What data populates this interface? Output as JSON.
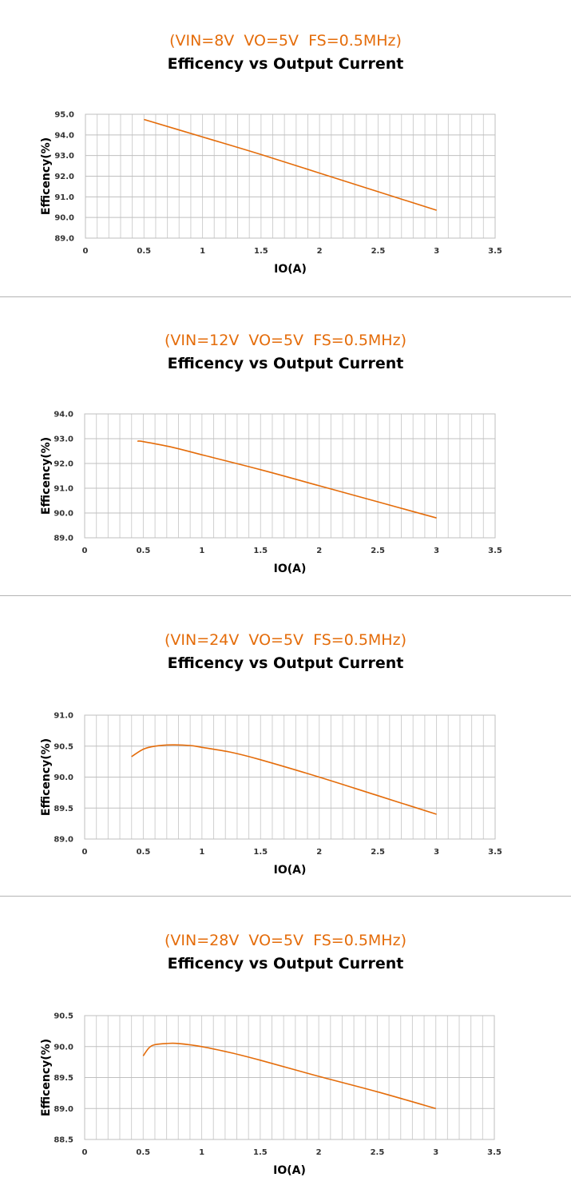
{
  "chart_data": [
    {
      "type": "line",
      "subtitle": "(VIN=8V  VO=5V  FS=0.5MHz)",
      "title": "Efficency vs Output Current",
      "xlabel": "IO(A)",
      "ylabel": "Efficency(%)",
      "xlim": [
        0,
        3.5
      ],
      "ylim": [
        89.0,
        95.0
      ],
      "xticks": [
        "0",
        "0.5",
        "1",
        "1.5",
        "2",
        "2.5",
        "3",
        "3.5"
      ],
      "yticks": [
        "89.0",
        "90.0",
        "91.0",
        "92.0",
        "93.0",
        "94.0",
        "95.0"
      ],
      "grid": true,
      "line_color": "#e46c0a",
      "series": [
        {
          "x": [
            0.5,
            1.0,
            1.5,
            2.0,
            2.5,
            3.0
          ],
          "y": [
            94.75,
            93.9,
            93.05,
            92.15,
            91.25,
            90.35
          ]
        }
      ]
    },
    {
      "type": "line",
      "subtitle": "(VIN=12V  VO=5V  FS=0.5MHz)",
      "title": "Efficency vs Output Current",
      "xlabel": "IO(A)",
      "ylabel": "Efficency(%)",
      "xlim": [
        0,
        3.5
      ],
      "ylim": [
        89.0,
        94.0
      ],
      "xticks": [
        "0",
        "0.5",
        "1",
        "1.5",
        "2",
        "2.5",
        "3",
        "3.5"
      ],
      "yticks": [
        "89.0",
        "90.0",
        "91.0",
        "92.0",
        "93.0",
        "94.0"
      ],
      "grid": true,
      "line_color": "#e46c0a",
      "series": [
        {
          "x": [
            0.45,
            0.5,
            0.75,
            1.0,
            1.5,
            2.0,
            2.5,
            3.0
          ],
          "y": [
            92.9,
            92.88,
            92.65,
            92.35,
            91.75,
            91.1,
            90.45,
            89.8
          ]
        }
      ]
    },
    {
      "type": "line",
      "subtitle": "(VIN=24V  VO=5V  FS=0.5MHz)",
      "title": "Efficency vs Output Current",
      "xlabel": "IO(A)",
      "ylabel": "Efficency(%)",
      "xlim": [
        0,
        3.5
      ],
      "ylim": [
        89.0,
        91.0
      ],
      "xticks": [
        "0",
        "0.5",
        "1",
        "1.5",
        "2",
        "2.5",
        "3",
        "3.5"
      ],
      "yticks": [
        "89.0",
        "89.5",
        "90.0",
        "90.5",
        "91.0"
      ],
      "grid": true,
      "line_color": "#e46c0a",
      "series": [
        {
          "x": [
            0.4,
            0.5,
            0.6,
            0.75,
            0.9,
            1.0,
            1.25,
            1.5,
            2.0,
            2.5,
            3.0
          ],
          "y": [
            90.33,
            90.45,
            90.5,
            90.52,
            90.51,
            90.48,
            90.4,
            90.28,
            90.0,
            89.7,
            89.4
          ]
        }
      ]
    },
    {
      "type": "line",
      "subtitle": "(VIN=28V  VO=5V  FS=0.5MHz)",
      "title": "Efficency vs Output Current",
      "xlabel": "IO(A)",
      "ylabel": "Efficency(%)",
      "xlim": [
        0,
        3.5
      ],
      "ylim": [
        88.5,
        90.5
      ],
      "xticks": [
        "0",
        "0.5",
        "1",
        "1.5",
        "2",
        "2.5",
        "3",
        "3.5"
      ],
      "yticks": [
        "88.5",
        "89.0",
        "89.5",
        "90.0",
        "90.5"
      ],
      "grid": true,
      "line_color": "#e46c0a",
      "series": [
        {
          "x": [
            0.5,
            0.55,
            0.6,
            0.7,
            0.8,
            1.0,
            1.25,
            1.5,
            2.0,
            2.5,
            3.0
          ],
          "y": [
            89.85,
            89.98,
            90.03,
            90.05,
            90.05,
            90.0,
            89.9,
            89.78,
            89.52,
            89.27,
            89.0
          ]
        }
      ]
    }
  ]
}
